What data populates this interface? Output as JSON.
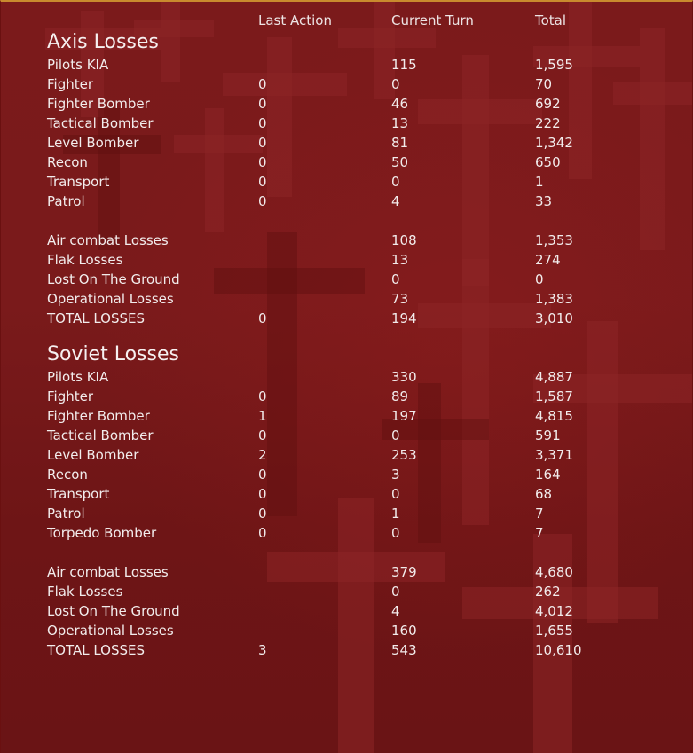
{
  "headers": {
    "last_action": "Last Action",
    "current_turn": "Current Turn",
    "total": "Total"
  },
  "axis": {
    "title": "Axis Losses",
    "rows": [
      {
        "label": "Pilots KIA",
        "last": "",
        "current": "115",
        "total": "1,595"
      },
      {
        "label": "Fighter",
        "last": "0",
        "current": "0",
        "total": "70"
      },
      {
        "label": "Fighter Bomber",
        "last": "0",
        "current": "46",
        "total": "692"
      },
      {
        "label": "Tactical Bomber",
        "last": "0",
        "current": "13",
        "total": "222"
      },
      {
        "label": "Level Bomber",
        "last": "0",
        "current": "81",
        "total": "1,342"
      },
      {
        "label": "Recon",
        "last": "0",
        "current": "50",
        "total": "650"
      },
      {
        "label": "Transport",
        "last": "0",
        "current": "0",
        "total": "1"
      },
      {
        "label": "Patrol",
        "last": "0",
        "current": "4",
        "total": "33"
      }
    ],
    "summary": [
      {
        "label": "Air combat Losses",
        "last": "",
        "current": "108",
        "total": "1,353"
      },
      {
        "label": "Flak Losses",
        "last": "",
        "current": "13",
        "total": "274"
      },
      {
        "label": "Lost On The Ground",
        "last": "",
        "current": "0",
        "total": "0"
      },
      {
        "label": "Operational Losses",
        "last": "",
        "current": "73",
        "total": "1,383"
      },
      {
        "label": "TOTAL LOSSES",
        "last": "0",
        "current": "194",
        "total": "3,010"
      }
    ]
  },
  "soviet": {
    "title": "Soviet Losses",
    "rows": [
      {
        "label": "Pilots KIA",
        "last": "",
        "current": "330",
        "total": "4,887"
      },
      {
        "label": "Fighter",
        "last": "0",
        "current": "89",
        "total": "1,587"
      },
      {
        "label": "Fighter Bomber",
        "last": "1",
        "current": "197",
        "total": "4,815"
      },
      {
        "label": "Tactical Bomber",
        "last": "0",
        "current": "0",
        "total": "591"
      },
      {
        "label": "Level Bomber",
        "last": "2",
        "current": "253",
        "total": "3,371"
      },
      {
        "label": "Recon",
        "last": "0",
        "current": "3",
        "total": "164"
      },
      {
        "label": "Transport",
        "last": "0",
        "current": "0",
        "total": "68"
      },
      {
        "label": "Patrol",
        "last": "0",
        "current": "1",
        "total": "7"
      },
      {
        "label": "Torpedo Bomber",
        "last": "0",
        "current": "0",
        "total": "7"
      }
    ],
    "summary": [
      {
        "label": "Air combat Losses",
        "last": "",
        "current": "379",
        "total": "4,680"
      },
      {
        "label": "Flak Losses",
        "last": "",
        "current": "0",
        "total": "262"
      },
      {
        "label": "Lost On The Ground",
        "last": "",
        "current": "4",
        "total": "4,012"
      },
      {
        "label": "Operational Losses",
        "last": "",
        "current": "160",
        "total": "1,655"
      },
      {
        "label": "TOTAL LOSSES",
        "last": "3",
        "current": "543",
        "total": "10,610"
      }
    ]
  }
}
